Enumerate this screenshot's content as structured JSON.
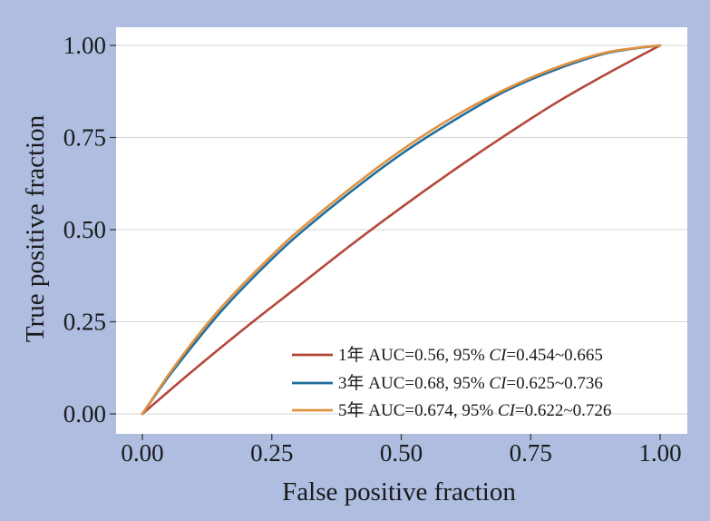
{
  "chart_data": {
    "type": "line",
    "title": "",
    "xlabel": "False positive fraction",
    "ylabel": "True positive fraction",
    "xlim": [
      0,
      1
    ],
    "ylim": [
      0,
      1
    ],
    "grid": "horizontal",
    "legend_position": "bottom-right",
    "xticks": [
      "0.00",
      "0.25",
      "0.50",
      "0.75",
      "1.00"
    ],
    "yticks": [
      "0.00",
      "0.25",
      "0.50",
      "0.75",
      "1.00"
    ],
    "series": [
      {
        "name": "1年",
        "color": "#b5473a",
        "legend_main": "1年 AUC=0.56, 95%",
        "legend_ci": "CI",
        "legend_range": "=0.454~0.665",
        "x": [
          0,
          0.1,
          0.2,
          0.3,
          0.4,
          0.5,
          0.6,
          0.7,
          0.8,
          0.9,
          1.0
        ],
        "y": [
          0,
          0.12,
          0.235,
          0.345,
          0.455,
          0.56,
          0.66,
          0.755,
          0.845,
          0.925,
          1.0
        ]
      },
      {
        "name": "3年",
        "color": "#1f6e9e",
        "legend_main": "3年 AUC=0.68, 95%",
        "legend_ci": "CI",
        "legend_range": "=0.625~0.736",
        "x": [
          0,
          0.05,
          0.1,
          0.15,
          0.2,
          0.25,
          0.3,
          0.4,
          0.5,
          0.6,
          0.7,
          0.8,
          0.9,
          1.0
        ],
        "y": [
          0,
          0.1,
          0.19,
          0.275,
          0.35,
          0.42,
          0.485,
          0.6,
          0.705,
          0.795,
          0.875,
          0.935,
          0.98,
          1.0
        ]
      },
      {
        "name": "5年",
        "color": "#e0913e",
        "legend_main": "5年 AUC=0.674, 95%",
        "legend_ci": "CI",
        "legend_range": "=0.622~0.726",
        "x": [
          0,
          0.05,
          0.1,
          0.15,
          0.2,
          0.25,
          0.3,
          0.4,
          0.5,
          0.6,
          0.7,
          0.8,
          0.9,
          1.0
        ],
        "y": [
          0,
          0.105,
          0.2,
          0.285,
          0.36,
          0.43,
          0.495,
          0.61,
          0.715,
          0.805,
          0.88,
          0.94,
          0.982,
          1.0
        ]
      }
    ]
  }
}
